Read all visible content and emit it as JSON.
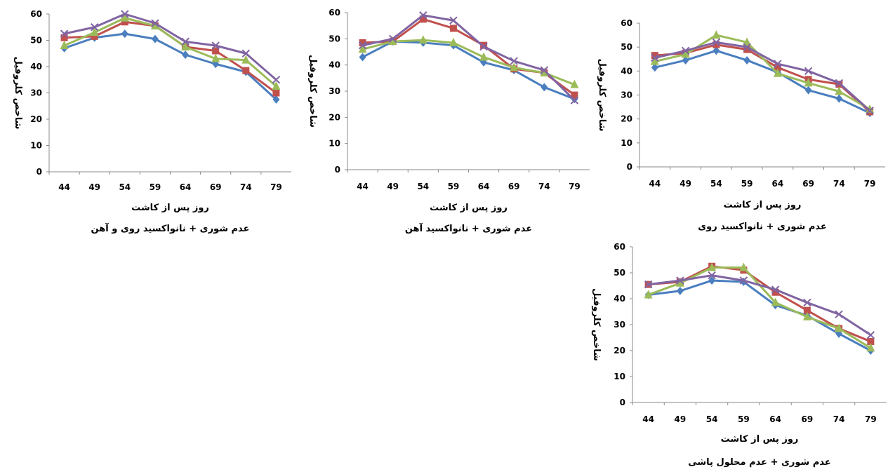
{
  "series_colors": [
    "#4a7ebf",
    "#c0504d",
    "#9bbb59",
    "#8064a2"
  ],
  "series_markers": [
    "diamond",
    "square",
    "triangle",
    "x"
  ],
  "chart_data": [
    {
      "type": "line",
      "title": "عدم شوری + نانواکسید روی و آهن",
      "xlabel": "روز پس از کاشت",
      "ylabel": "شاخص کلروفیل",
      "categories": [
        "44",
        "49",
        "54",
        "59",
        "64",
        "69",
        "74",
        "79"
      ],
      "yticks": [
        "0",
        "10",
        "20",
        "30",
        "40",
        "50",
        "60"
      ],
      "ylim": [
        0,
        60
      ],
      "grid": false,
      "series": [
        {
          "values": [
            47,
            51,
            52.5,
            50.5,
            44.5,
            41,
            38,
            27.5
          ]
        },
        {
          "values": [
            51,
            51.5,
            57,
            55.5,
            47.5,
            46,
            38.5,
            30
          ]
        },
        {
          "values": [
            48,
            53,
            58.5,
            55.5,
            47.5,
            43,
            42.5,
            32.5
          ]
        },
        {
          "values": [
            52.5,
            55,
            60,
            56.5,
            49.5,
            48,
            45,
            35
          ]
        }
      ]
    },
    {
      "type": "line",
      "title": "عدم شوری + نانواکسید آهن",
      "xlabel": "روز پس از کاشت",
      "ylabel": "شاخص کلروفیل",
      "categories": [
        "44",
        "49",
        "54",
        "59",
        "64",
        "69",
        "74",
        "79"
      ],
      "yticks": [
        "0",
        "10",
        "20",
        "30",
        "40",
        "50",
        "60"
      ],
      "ylim": [
        0,
        60
      ],
      "grid": false,
      "series": [
        {
          "values": [
            43,
            49,
            48.5,
            47.5,
            41,
            38,
            31.5,
            27
          ]
        },
        {
          "values": [
            48.5,
            49,
            57.5,
            54,
            47.5,
            38.5,
            37,
            28.5
          ]
        },
        {
          "values": [
            46,
            49,
            49.5,
            48.5,
            43,
            39,
            37,
            32.5
          ]
        },
        {
          "values": [
            47.5,
            50,
            59,
            57,
            47,
            41.5,
            38,
            26.5
          ]
        }
      ]
    },
    {
      "type": "line",
      "title": "عدم شوری + نانواکسید روی",
      "xlabel": "روز پس از کاشت",
      "ylabel": "شاخص کلروفیل",
      "categories": [
        "44",
        "49",
        "54",
        "59",
        "64",
        "69",
        "74",
        "79"
      ],
      "yticks": [
        "0",
        "10",
        "20",
        "30",
        "40",
        "50",
        "60"
      ],
      "ylim": [
        0,
        60
      ],
      "grid": false,
      "series": [
        {
          "values": [
            41.5,
            44.5,
            48.5,
            44.5,
            39.5,
            32,
            28.5,
            22.5
          ]
        },
        {
          "values": [
            46.5,
            47.5,
            51,
            49,
            41.5,
            36.5,
            34.5,
            23
          ]
        },
        {
          "values": [
            44,
            47,
            55,
            52,
            39,
            35,
            31.5,
            24
          ]
        },
        {
          "values": [
            45.5,
            48.5,
            52,
            50,
            43,
            40,
            35,
            23.5
          ]
        }
      ]
    },
    {
      "type": "line",
      "title": "عدم شوری + عدم محلول پاشی",
      "xlabel": "روز پس از کاشت",
      "ylabel": "شاخص کلروفیل",
      "categories": [
        "44",
        "49",
        "54",
        "59",
        "64",
        "69",
        "74",
        "79"
      ],
      "yticks": [
        "0",
        "10",
        "20",
        "30",
        "40",
        "50",
        "60"
      ],
      "ylim": [
        0,
        60
      ],
      "grid": false,
      "series": [
        {
          "values": [
            41.5,
            43,
            47,
            46.5,
            37.5,
            33.5,
            26.5,
            20
          ]
        },
        {
          "values": [
            45.5,
            46.5,
            52.5,
            51,
            42.5,
            35.5,
            28.5,
            23.5
          ]
        },
        {
          "values": [
            41.5,
            46,
            52,
            52,
            38.5,
            33,
            28.5,
            21
          ]
        },
        {
          "values": [
            45.5,
            47,
            49,
            47,
            43.5,
            38.5,
            34,
            26
          ]
        }
      ]
    }
  ]
}
